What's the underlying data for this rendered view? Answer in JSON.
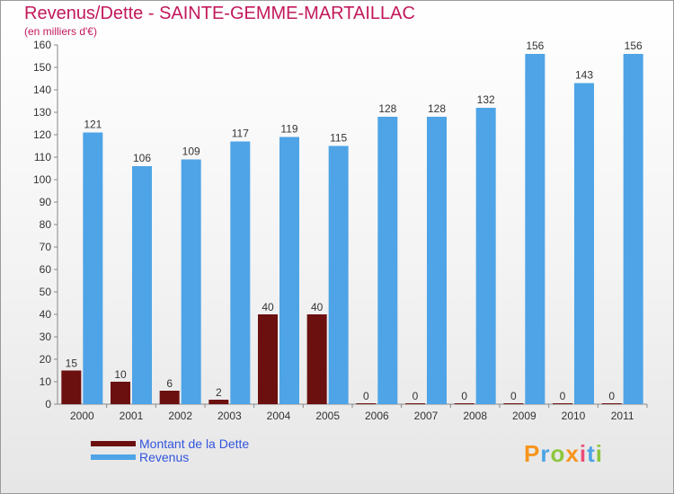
{
  "title": "Revenus/Dette - SAINTE-GEMME-MARTAILLAC",
  "subtitle": "(en milliers d'€)",
  "legend": {
    "debt_label": "Montant de la Dette",
    "revenue_label": "Revenus"
  },
  "logo": "Proxiti",
  "colors": {
    "debt": "#6b0f0f",
    "revenue": "#4ea4e6",
    "title": "#c2185b",
    "legend_text": "#3355dd"
  },
  "chart_data": {
    "type": "bar",
    "title": "Revenus/Dette - SAINTE-GEMME-MARTAILLAC",
    "ylabel": "(en milliers d'€)",
    "categories": [
      "2000",
      "2001",
      "2002",
      "2003",
      "2004",
      "2005",
      "2006",
      "2007",
      "2008",
      "2009",
      "2010",
      "2011"
    ],
    "series": [
      {
        "name": "Montant de la Dette",
        "values": [
          15,
          10,
          6,
          2,
          40,
          40,
          0,
          0,
          0,
          0,
          0,
          0
        ]
      },
      {
        "name": "Revenus",
        "values": [
          121,
          106,
          109,
          117,
          119,
          115,
          128,
          128,
          132,
          156,
          143,
          156
        ]
      }
    ],
    "ylim": [
      0,
      160
    ],
    "yticks": [
      0,
      10,
      20,
      30,
      40,
      50,
      60,
      70,
      80,
      90,
      100,
      110,
      120,
      130,
      140,
      150,
      160
    ],
    "grid": false,
    "legend_position": "bottom-left"
  }
}
